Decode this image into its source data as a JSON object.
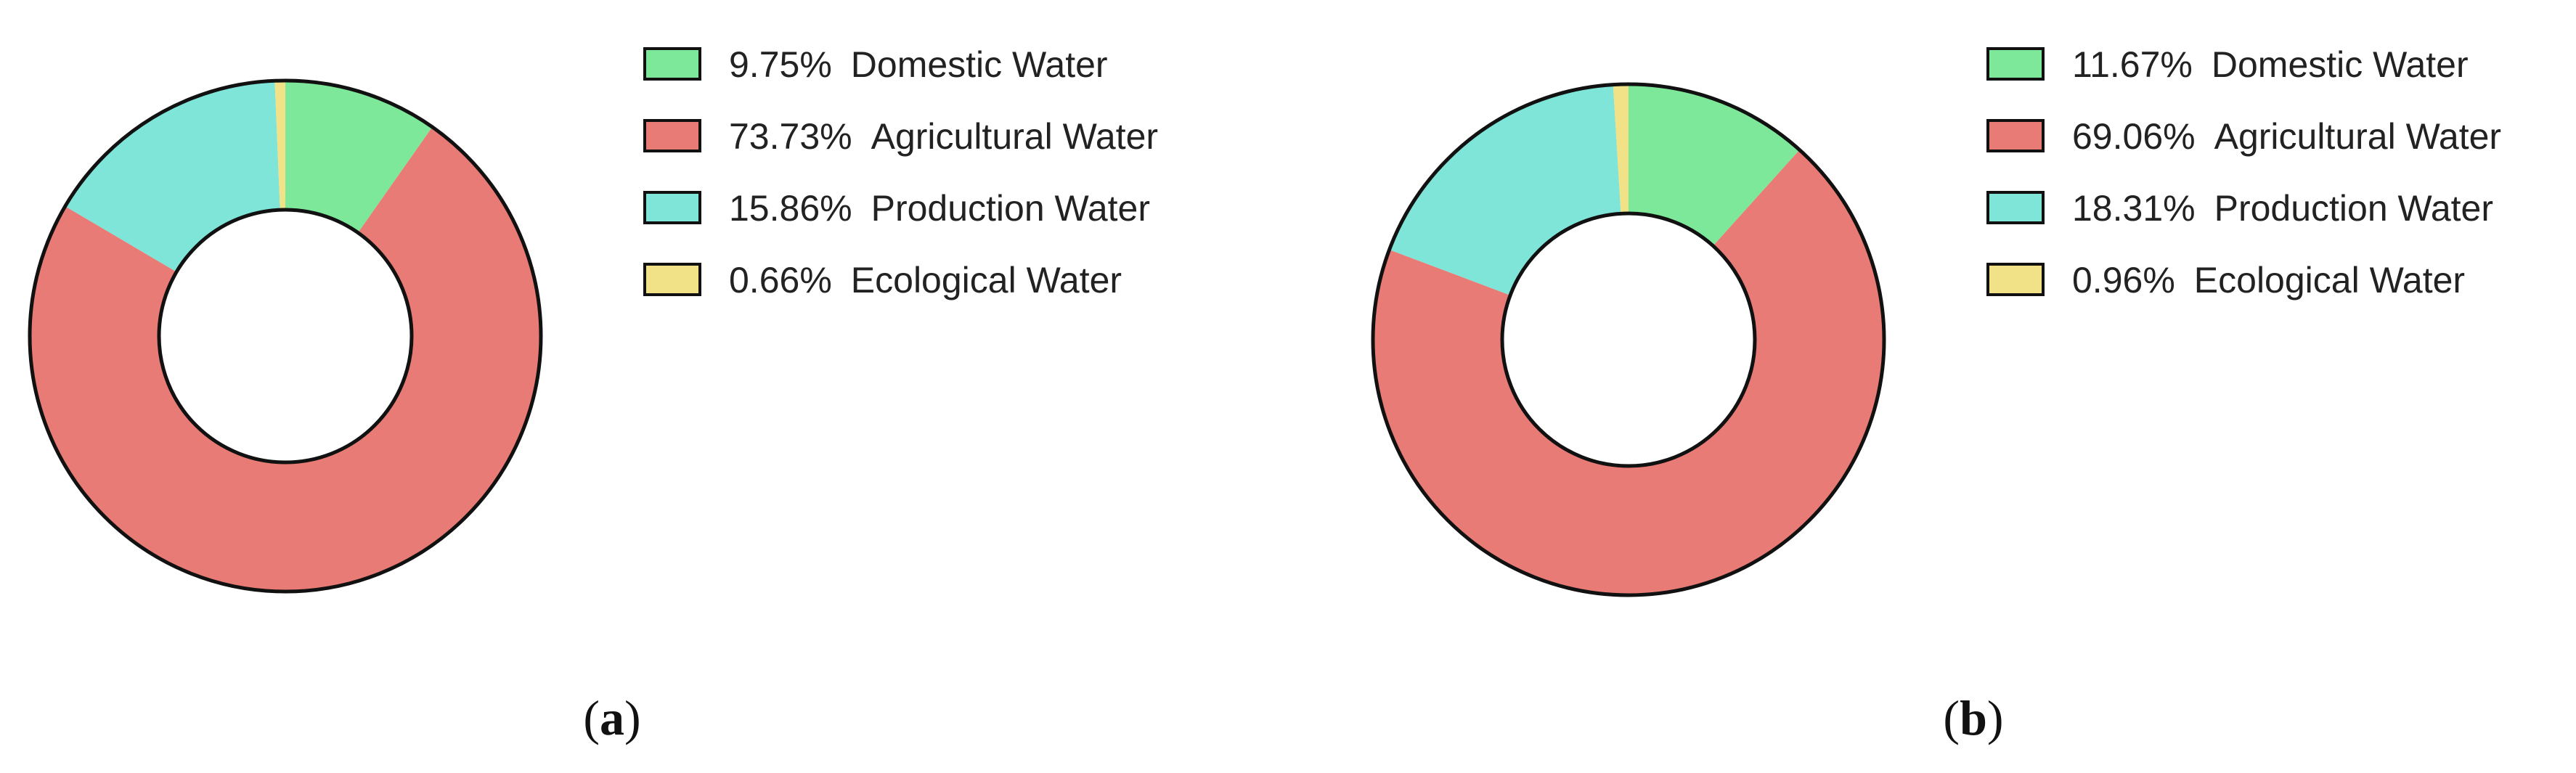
{
  "chart_data": [
    {
      "type": "pie",
      "panel_label": "a",
      "caption": {
        "open": "(",
        "letter": "a",
        "close": ")"
      },
      "categories": [
        "Domestic Water",
        "Agricultural Water",
        "Production Water",
        "Ecological Water"
      ],
      "values": [
        9.75,
        73.73,
        15.86,
        0.66
      ],
      "value_labels": [
        "9.75%",
        "73.73%",
        "15.86%",
        "0.66%"
      ],
      "colors": [
        "#7de89a",
        "#e87b75",
        "#7fe5d8",
        "#f1e187"
      ],
      "legend_position": "right",
      "donut": true
    },
    {
      "type": "pie",
      "panel_label": "b",
      "caption": {
        "open": "(",
        "letter": "b",
        "close": ")"
      },
      "categories": [
        "Domestic Water",
        "Agricultural Water",
        "Production Water",
        "Ecological Water"
      ],
      "values": [
        11.67,
        69.06,
        18.31,
        0.96
      ],
      "value_labels": [
        "11.67%",
        "69.06%",
        "18.31%",
        "0.96%"
      ],
      "colors": [
        "#7de89a",
        "#e87b75",
        "#7fe5d8",
        "#f1e187"
      ],
      "legend_position": "right",
      "donut": true
    }
  ]
}
